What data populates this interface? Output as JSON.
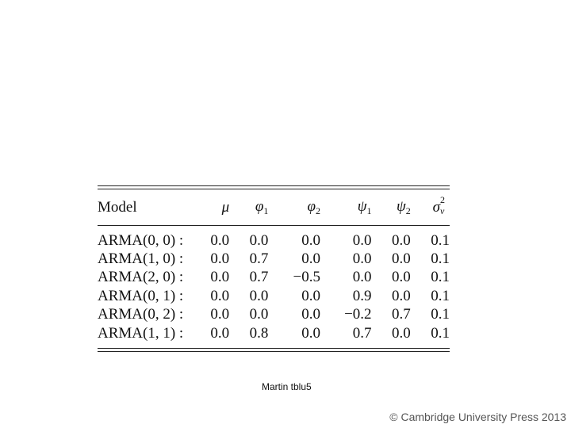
{
  "table": {
    "headers": {
      "model": "Model",
      "mu": "μ",
      "phi": "φ",
      "psi": "ψ",
      "sigma": "σ",
      "sub1": "1",
      "sub2": "2",
      "sup2": "2",
      "subv": "v"
    },
    "rows": [
      {
        "model": "ARMA(0, 0) :",
        "mu": "0.0",
        "phi1": "0.0",
        "phi2": "0.0",
        "psi1": "0.0",
        "psi2": "0.0",
        "sigma2": "0.1"
      },
      {
        "model": "ARMA(1, 0) :",
        "mu": "0.0",
        "phi1": "0.7",
        "phi2": "0.0",
        "psi1": "0.0",
        "psi2": "0.0",
        "sigma2": "0.1"
      },
      {
        "model": "ARMA(2, 0) :",
        "mu": "0.0",
        "phi1": "0.7",
        "phi2": "−0.5",
        "psi1": "0.0",
        "psi2": "0.0",
        "sigma2": "0.1"
      },
      {
        "model": "ARMA(0, 1) :",
        "mu": "0.0",
        "phi1": "0.0",
        "phi2": "0.0",
        "psi1": "0.9",
        "psi2": "0.0",
        "sigma2": "0.1"
      },
      {
        "model": "ARMA(0, 2) :",
        "mu": "0.0",
        "phi1": "0.0",
        "phi2": "0.0",
        "psi1": "−0.2",
        "psi2": "0.7",
        "sigma2": "0.1"
      },
      {
        "model": "ARMA(1, 1) :",
        "mu": "0.0",
        "phi1": "0.8",
        "phi2": "0.0",
        "psi1": "0.7",
        "psi2": "0.0",
        "sigma2": "0.1"
      }
    ]
  },
  "caption": "Martin tblu5",
  "footer": "© Cambridge University Press 2013"
}
